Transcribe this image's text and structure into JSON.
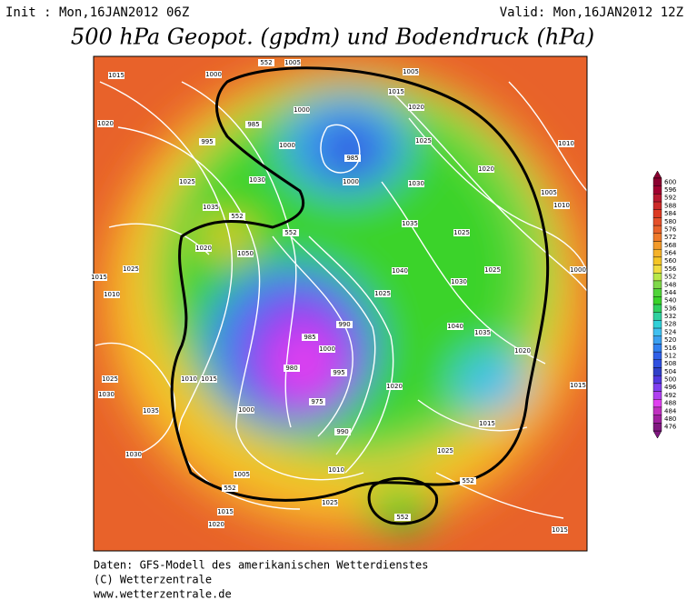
{
  "header": {
    "init": "Init : Mon,16JAN2012 06Z",
    "valid": "Valid: Mon,16JAN2012 12Z",
    "title": "500 hPa Geopot. (gpdm) und Bodendruck (hPa)"
  },
  "legend": {
    "levels": [
      600,
      596,
      592,
      588,
      584,
      580,
      576,
      572,
      568,
      564,
      560,
      556,
      552,
      548,
      544,
      540,
      536,
      532,
      528,
      524,
      520,
      516,
      512,
      508,
      504,
      500,
      496,
      492,
      488,
      484,
      480,
      476
    ]
  },
  "map": {
    "labels": [
      "1015",
      "1000",
      "1005",
      "1005",
      "1020",
      "995",
      "985",
      "1000",
      "1015",
      "1020",
      "1000",
      "985",
      "1025",
      "1010",
      "1025",
      "1030",
      "1000",
      "1030",
      "1020",
      "1005",
      "1035",
      "1035",
      "1025",
      "1010",
      "1020",
      "1050",
      "1040",
      "1015",
      "1025",
      "1010",
      "1025",
      "1030",
      "1025",
      "1000",
      "990",
      "1040",
      "1035",
      "985",
      "1000",
      "1020",
      "1025",
      "1010",
      "1015",
      "980",
      "995",
      "1030",
      "1020",
      "975",
      "1015",
      "1035",
      "1000",
      "990",
      "1015",
      "1030",
      "1025",
      "1005",
      "1010",
      "1025",
      "1015",
      "1020",
      "1015",
      "552",
      "552",
      "552",
      "552",
      "552",
      "552"
    ]
  },
  "footer": {
    "line1": "Daten: GFS-Modell des amerikanischen Wetterdienstes",
    "line2": "(C) Wetterzentrale",
    "line3": "www.wetterzentrale.de"
  }
}
